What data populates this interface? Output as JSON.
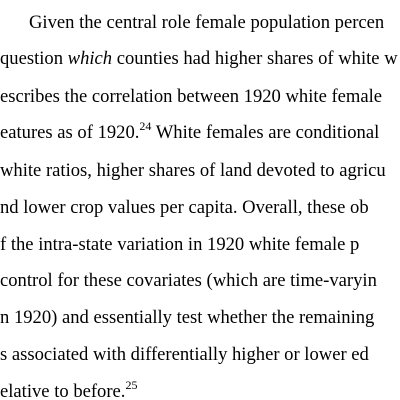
{
  "document": {
    "lines": [
      "Given the central role female population percen",
      [
        "question ",
        "which",
        " counties had higher shares of white w"
      ],
      "escribes the correlation between 1920 white female",
      [
        "eatures as of 1920.",
        "24",
        " White females are conditional"
      ],
      "white ratios, higher shares of land devoted to agricu",
      "nd lower crop values per capita.  Overall, these ob",
      "f the intra-state variation in 1920 white female p",
      "control for these covariates (which are time-varyin",
      "n 1920) and essentially test whether the remaining",
      "s associated with differentially higher or lower ed",
      [
        "elative to before.",
        "25"
      ]
    ]
  }
}
